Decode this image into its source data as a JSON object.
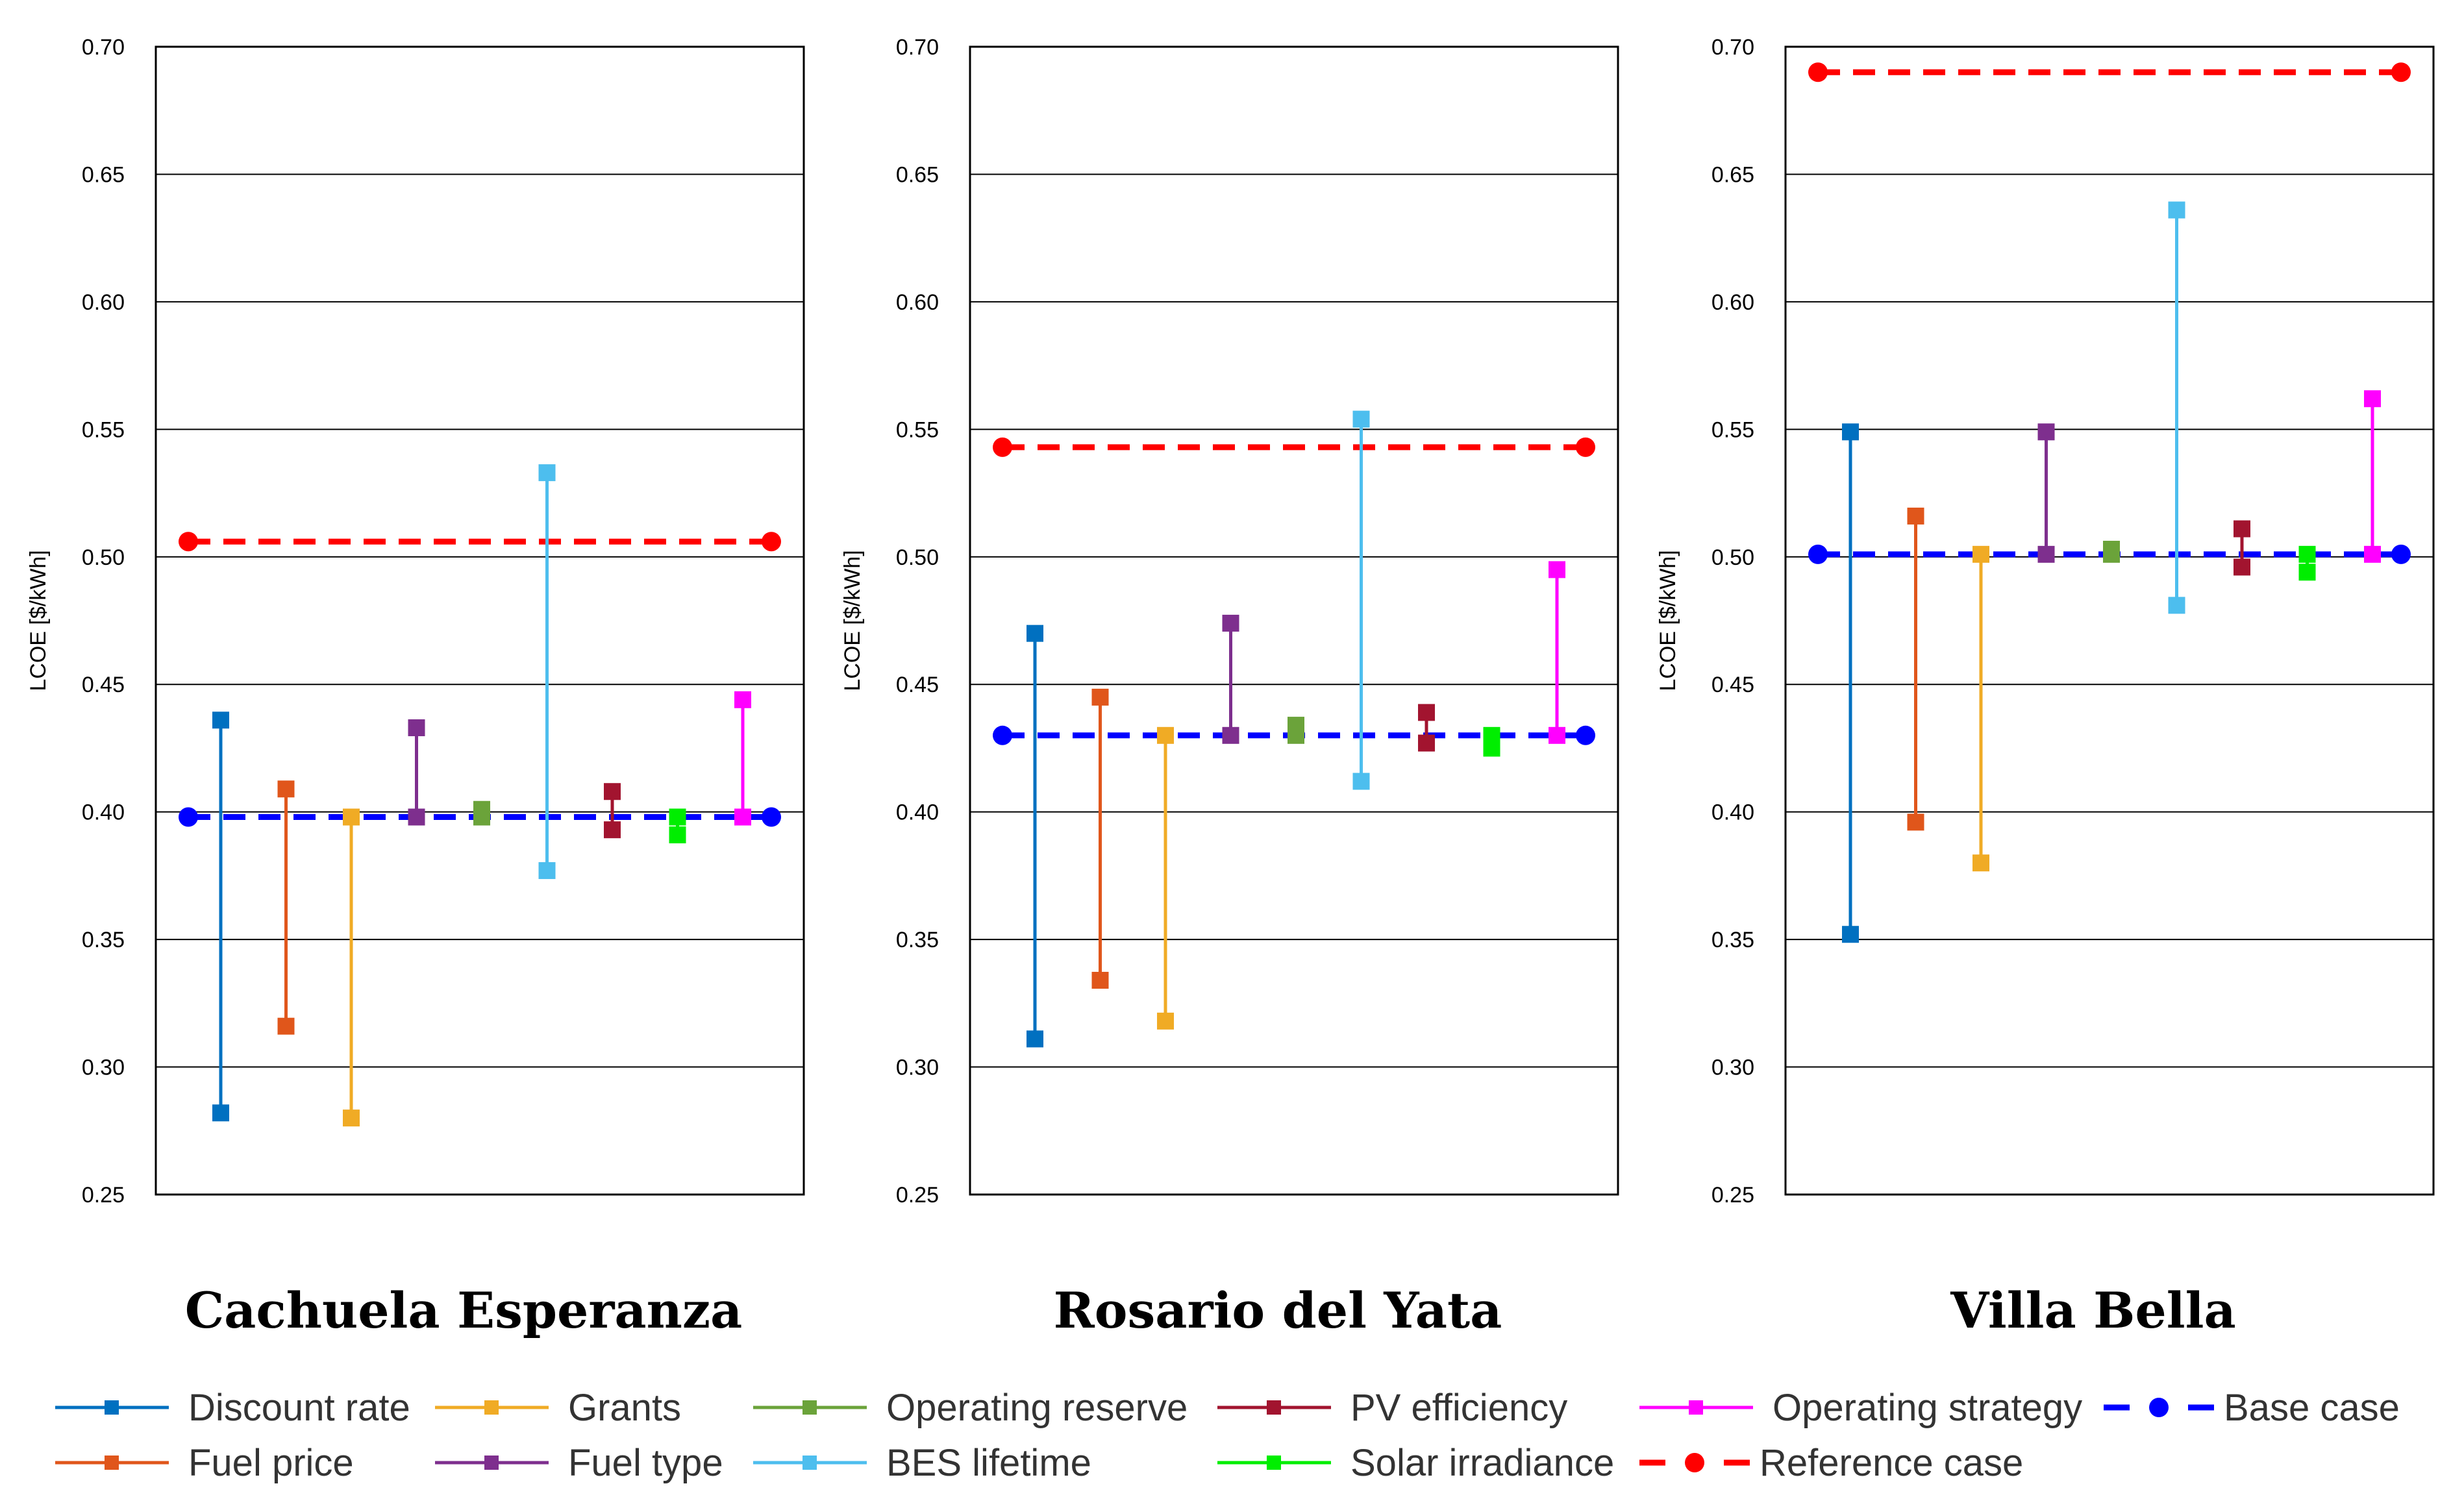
{
  "chart_data": {
    "type": "range-dot",
    "ylabel": "LCOE [$/kWh]",
    "ylim": [
      0.25,
      0.7
    ],
    "yticks": [
      "0.25",
      "0.30",
      "0.35",
      "0.40",
      "0.45",
      "0.50",
      "0.55",
      "0.60",
      "0.65",
      "0.70"
    ],
    "grid": true,
    "legend_position": "bottom",
    "parameters": [
      {
        "name": "Discount rate",
        "color": "#0070C0"
      },
      {
        "name": "Fuel price",
        "color": "#E0561B"
      },
      {
        "name": "Grants",
        "color": "#F0AB25"
      },
      {
        "name": "Fuel type",
        "color": "#7E2F8E"
      },
      {
        "name": "Operating reserve",
        "color": "#6BA33A"
      },
      {
        "name": "BES lifetime",
        "color": "#4DBEEE"
      },
      {
        "name": "PV efficiency",
        "color": "#A2142F"
      },
      {
        "name": "Solar irradiance",
        "color": "#00EE00"
      },
      {
        "name": "Operating strategy",
        "color": "#FF00FF"
      }
    ],
    "base_case_color": "#0000FF",
    "reference_case_color": "#FF0000",
    "panels": [
      {
        "title": "Cachuela Esperanza",
        "base_case": 0.398,
        "reference_case": 0.506,
        "ranges": [
          [
            0.282,
            0.436
          ],
          [
            0.316,
            0.409
          ],
          [
            0.28,
            0.398
          ],
          [
            0.398,
            0.433
          ],
          [
            0.398,
            0.401
          ],
          [
            0.377,
            0.533
          ],
          [
            0.393,
            0.408
          ],
          [
            0.391,
            0.398
          ],
          [
            0.398,
            0.444
          ]
        ]
      },
      {
        "title": "Rosario del Yata",
        "base_case": 0.43,
        "reference_case": 0.543,
        "ranges": [
          [
            0.311,
            0.47
          ],
          [
            0.334,
            0.445
          ],
          [
            0.318,
            0.43
          ],
          [
            0.43,
            0.474
          ],
          [
            0.43,
            0.434
          ],
          [
            0.412,
            0.554
          ],
          [
            0.427,
            0.439
          ],
          [
            0.425,
            0.43
          ],
          [
            0.43,
            0.495
          ]
        ]
      },
      {
        "title": "Villa Bella",
        "base_case": 0.501,
        "reference_case": 0.69,
        "ranges": [
          [
            0.352,
            0.549
          ],
          [
            0.396,
            0.516
          ],
          [
            0.38,
            0.501
          ],
          [
            0.501,
            0.549
          ],
          [
            0.501,
            0.503
          ],
          [
            0.481,
            0.636
          ],
          [
            0.496,
            0.511
          ],
          [
            0.494,
            0.501
          ],
          [
            0.501,
            0.562
          ]
        ]
      }
    ]
  },
  "legend": {
    "items": [
      {
        "label": "Discount rate",
        "color": "#0070C0"
      },
      {
        "label": "Grants",
        "color": "#F0AB25"
      },
      {
        "label": "Operating reserve",
        "color": "#6BA33A"
      },
      {
        "label": "PV efficiency",
        "color": "#A2142F"
      },
      {
        "label": "Operating strategy",
        "color": "#FF00FF"
      },
      {
        "label": "Base case",
        "color": "#0000FF"
      },
      {
        "label": "Fuel price",
        "color": "#E0561B"
      },
      {
        "label": "Fuel type",
        "color": "#7E2F8E"
      },
      {
        "label": "BES lifetime",
        "color": "#4DBEEE"
      },
      {
        "label": "Solar irradiance",
        "color": "#00EE00"
      },
      {
        "label": "Reference case",
        "color": "#FF0000"
      }
    ]
  }
}
